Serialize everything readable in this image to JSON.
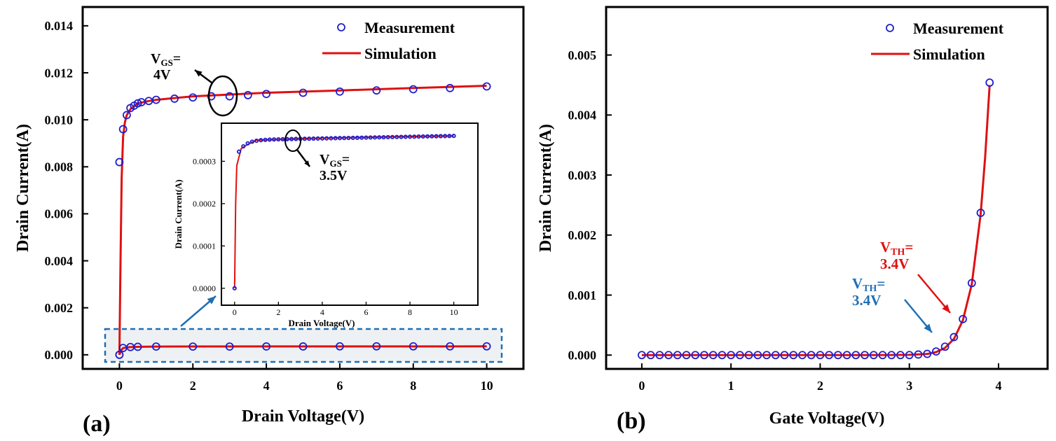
{
  "chart_data": [
    {
      "panel": "(a)",
      "type": "line",
      "xlabel": "Drain Voltage(V)",
      "ylabel": "Drain Current(A)",
      "xlim": [
        -1,
        11
      ],
      "ylim": [
        -0.0006,
        0.0148
      ],
      "xticks": [
        0,
        2,
        4,
        6,
        8,
        10
      ],
      "xtick_labels": [
        "0",
        "2",
        "4",
        "6",
        "8",
        "10"
      ],
      "yticks": [
        0,
        0.002,
        0.004,
        0.006,
        0.008,
        0.01,
        0.012,
        0.014
      ],
      "ytick_labels": [
        "0.000",
        "0.002",
        "0.004",
        "0.006",
        "0.008",
        "0.010",
        "0.012",
        "0.014"
      ],
      "legend": {
        "position": "top-right",
        "entries": [
          "Measurement",
          "Simulation"
        ]
      },
      "annotation": {
        "main": "V",
        "sub": "GS",
        "rest": "=",
        "value": "4V"
      },
      "series": [
        {
          "name": "Measurement",
          "style": "marker",
          "color": "#1f1fcc",
          "points": [
            [
              0,
              0
            ],
            [
              0,
              0.0082
            ],
            [
              0.1,
              0.0096
            ],
            [
              0.2,
              0.0102
            ],
            [
              0.3,
              0.0105
            ],
            [
              0.4,
              0.0106
            ],
            [
              0.5,
              0.0107
            ],
            [
              0.6,
              0.01075
            ],
            [
              0.8,
              0.0108
            ],
            [
              1.0,
              0.01085
            ],
            [
              1.5,
              0.0109
            ],
            [
              2.0,
              0.01095
            ],
            [
              2.5,
              0.011
            ],
            [
              3.0,
              0.011
            ],
            [
              3.5,
              0.01105
            ],
            [
              4.0,
              0.0111
            ],
            [
              5.0,
              0.01115
            ],
            [
              6.0,
              0.0112
            ],
            [
              7.0,
              0.01125
            ],
            [
              8.0,
              0.0113
            ],
            [
              9.0,
              0.01135
            ],
            [
              10.0,
              0.01142
            ]
          ]
        },
        {
          "name": "Simulation",
          "style": "line",
          "color": "#e01010",
          "points": [
            [
              0,
              0
            ],
            [
              0.03,
              0.004
            ],
            [
              0.06,
              0.0075
            ],
            [
              0.1,
              0.0093
            ],
            [
              0.15,
              0.0099
            ],
            [
              0.2,
              0.0102
            ],
            [
              0.3,
              0.01045
            ],
            [
              0.5,
              0.0107
            ],
            [
              0.8,
              0.0108
            ],
            [
              1.0,
              0.01085
            ],
            [
              2.0,
              0.011
            ],
            [
              4.0,
              0.01115
            ],
            [
              6.0,
              0.01125
            ],
            [
              8.0,
              0.01135
            ],
            [
              10.0,
              0.01145
            ]
          ]
        },
        {
          "name": "Measurement",
          "style": "marker",
          "color": "#1f1fcc",
          "note": "VGS=3.5V curve",
          "points": [
            [
              0,
              0
            ],
            [
              0.1,
              0.00029
            ],
            [
              0.3,
              0.00033
            ],
            [
              0.5,
              0.00034
            ],
            [
              1,
              0.00035
            ],
            [
              2,
              0.00035
            ],
            [
              3,
              0.00035
            ],
            [
              4,
              0.000355
            ],
            [
              5,
              0.000355
            ],
            [
              6,
              0.00036
            ],
            [
              7,
              0.00036
            ],
            [
              8,
              0.00036
            ],
            [
              9,
              0.00036
            ],
            [
              10,
              0.00036
            ]
          ]
        },
        {
          "name": "Simulation",
          "style": "line",
          "color": "#e01010",
          "note": "VGS=3.5V curve",
          "points": [
            [
              0,
              0
            ],
            [
              0.05,
              0.0002
            ],
            [
              0.1,
              0.00029
            ],
            [
              0.3,
              0.00033
            ],
            [
              0.6,
              0.00034
            ],
            [
              1,
              0.00035
            ],
            [
              4,
              0.000355
            ],
            [
              10,
              0.00036
            ]
          ]
        }
      ],
      "inset": {
        "type": "line",
        "xlabel": "Drain Voltage(V)",
        "ylabel": "Drain Current(A)",
        "xlim": [
          -0.6,
          11.1
        ],
        "ylim": [
          -4e-05,
          0.00039
        ],
        "xticks": [
          0,
          2,
          4,
          6,
          8,
          10
        ],
        "xtick_labels": [
          "0",
          "2",
          "4",
          "6",
          "8",
          "10"
        ],
        "yticks": [
          0,
          0.0001,
          0.0002,
          0.0003
        ],
        "ytick_labels": [
          "0.0000",
          "0.0001",
          "0.0002",
          "0.0003"
        ],
        "annotation": {
          "main": "V",
          "sub": "GS",
          "rest": "=",
          "value": "3.5V"
        }
      }
    },
    {
      "panel": "(b)",
      "type": "line",
      "xlabel": "Gate Voltage(V)",
      "ylabel": "Drain Current(A)",
      "xlim": [
        -0.4,
        4.55
      ],
      "ylim": [
        -0.00023,
        0.0058
      ],
      "xticks": [
        0,
        1,
        2,
        3,
        4
      ],
      "xtick_labels": [
        "0",
        "1",
        "2",
        "3",
        "4"
      ],
      "yticks": [
        0,
        0.001,
        0.002,
        0.003,
        0.004,
        0.005
      ],
      "ytick_labels": [
        "0.000",
        "0.001",
        "0.002",
        "0.003",
        "0.004",
        "0.005"
      ],
      "legend": {
        "position": "top-right",
        "entries": [
          "Measurement",
          "Simulation"
        ]
      },
      "annotations": [
        {
          "main": "V",
          "sub": "TH",
          "rest": "=",
          "value": "3.4V",
          "color": "#e01010"
        },
        {
          "main": "V",
          "sub": "TH",
          "rest": "=",
          "value": "3.4V",
          "color": "#1f6fb5"
        }
      ],
      "series": [
        {
          "name": "Measurement",
          "style": "marker",
          "color": "#1f1fcc",
          "points": [
            [
              0,
              0
            ],
            [
              0.1,
              0
            ],
            [
              0.2,
              0
            ],
            [
              0.3,
              0
            ],
            [
              0.4,
              0
            ],
            [
              0.5,
              0
            ],
            [
              0.6,
              0
            ],
            [
              0.7,
              0
            ],
            [
              0.8,
              0
            ],
            [
              0.9,
              0
            ],
            [
              1.0,
              0
            ],
            [
              1.1,
              0
            ],
            [
              1.2,
              0
            ],
            [
              1.3,
              0
            ],
            [
              1.4,
              0
            ],
            [
              1.5,
              0
            ],
            [
              1.6,
              0
            ],
            [
              1.7,
              0
            ],
            [
              1.8,
              0
            ],
            [
              1.9,
              0
            ],
            [
              2.0,
              0
            ],
            [
              2.1,
              0
            ],
            [
              2.2,
              0
            ],
            [
              2.3,
              0
            ],
            [
              2.4,
              0
            ],
            [
              2.5,
              0
            ],
            [
              2.6,
              0
            ],
            [
              2.7,
              0
            ],
            [
              2.8,
              0
            ],
            [
              2.9,
              0
            ],
            [
              3.0,
              0
            ],
            [
              3.1,
              1e-05
            ],
            [
              3.2,
              2e-05
            ],
            [
              3.3,
              6e-05
            ],
            [
              3.4,
              0.00014
            ],
            [
              3.5,
              0.0003
            ],
            [
              3.6,
              0.0006
            ],
            [
              3.7,
              0.0012
            ],
            [
              3.8,
              0.00237
            ],
            [
              3.9,
              0.00454
            ]
          ]
        },
        {
          "name": "Simulation",
          "style": "line",
          "color": "#e01010",
          "points": [
            [
              0,
              0
            ],
            [
              2.5,
              0
            ],
            [
              3.0,
              5e-06
            ],
            [
              3.2,
              2e-05
            ],
            [
              3.3,
              5e-05
            ],
            [
              3.4,
              0.00012
            ],
            [
              3.5,
              0.00027
            ],
            [
              3.6,
              0.00058
            ],
            [
              3.7,
              0.00118
            ],
            [
              3.8,
              0.00235
            ],
            [
              3.85,
              0.0033
            ],
            [
              3.9,
              0.0045
            ]
          ]
        }
      ]
    }
  ]
}
